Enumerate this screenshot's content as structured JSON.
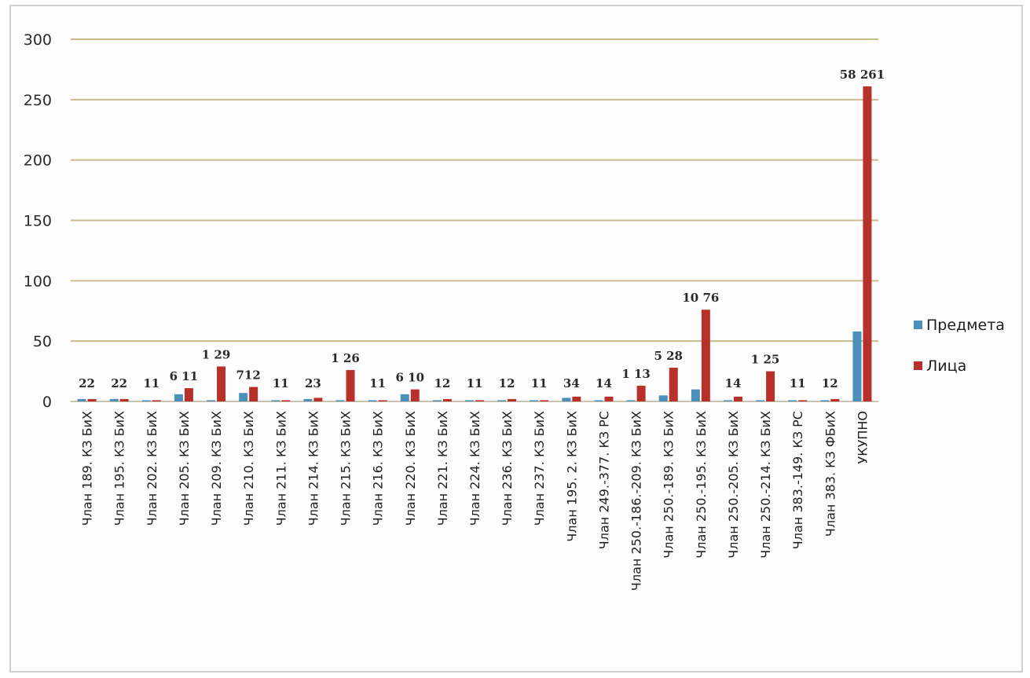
{
  "chart_data": {
    "type": "bar",
    "categories": [
      "Члан 189. КЗ БиХ",
      "Члан 195. КЗ БиХ",
      "Члан 202. КЗ БиХ",
      "Члан 205. КЗ БиХ",
      "Члан 209. КЗ БиХ",
      "Члан 210. КЗ БиХ",
      "Члан 211. КЗ БиХ",
      "Члан 214. КЗ БиХ",
      "Члан 215. КЗ БиХ",
      "Члан 216. КЗ БиХ",
      "Члан 220. КЗ БиХ",
      "Члан 221. КЗ БиХ",
      "Члан 224. КЗ БиХ",
      "Члан 236. КЗ БиХ",
      "Члан 237. КЗ БиХ",
      "Члан 195. 2. КЗ БиХ",
      "Члан 249.-377. КЗ РС",
      "Члан 250.-186.-209. КЗ БиХ",
      "Члан 250.-189. КЗ БиХ",
      "Члан 250.-195. КЗ БиХ",
      "Члан 250.-205. КЗ БиХ",
      "Члан 250.-214. КЗ БиХ",
      "Члан 383.-149. КЗ РС",
      "Члан 383. КЗ ФБиХ",
      "УКУПНО"
    ],
    "series": [
      {
        "name": "Предмета",
        "color": "#4a90b8",
        "values": [
          2,
          2,
          1,
          6,
          1,
          7,
          1,
          2,
          1,
          1,
          6,
          1,
          1,
          1,
          1,
          3,
          1,
          1,
          5,
          10,
          1,
          1,
          1,
          1,
          58
        ]
      },
      {
        "name": "Лица",
        "color": "#b8302a",
        "values": [
          2,
          2,
          1,
          11,
          29,
          12,
          1,
          3,
          26,
          1,
          10,
          2,
          1,
          2,
          1,
          4,
          4,
          13,
          28,
          76,
          4,
          25,
          1,
          2,
          261
        ]
      }
    ],
    "data_labels": [
      "22",
      "22",
      "11",
      "6 11",
      "1 29",
      "712",
      "11",
      "23",
      "1 26",
      "11",
      "6 10",
      "12",
      "11",
      "12",
      "11",
      "34",
      "14",
      "1 13",
      "5 28",
      "10 76",
      "14",
      "1 25",
      "11",
      "12",
      "58 261"
    ],
    "ylim": [
      0,
      300
    ],
    "yticks": [
      "0",
      "50",
      "100",
      "150",
      "200",
      "250",
      "300"
    ],
    "grid": true,
    "legend_position": "right"
  }
}
